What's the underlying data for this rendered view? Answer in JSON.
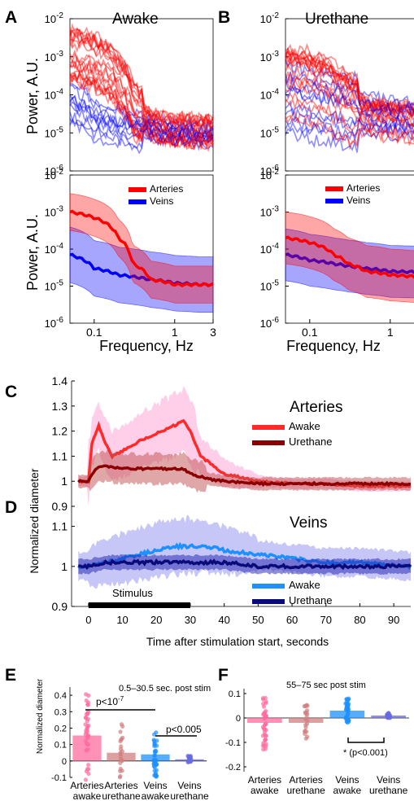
{
  "figure": {
    "panels": {
      "A": {
        "letter": "A",
        "title": "Awake"
      },
      "B": {
        "letter": "B",
        "title": "Urethane"
      },
      "C": {
        "letter": "C",
        "title": "Arteries"
      },
      "D": {
        "letter": "D",
        "title": "Veins"
      },
      "E": {
        "letter": "E",
        "annotation": "0.5–30.5 sec. post stim"
      },
      "F": {
        "letter": "F",
        "annotation": "55–75 sec post stim"
      }
    },
    "spectra": {
      "ylabel": "Power, A.U.",
      "xlabel": "Frequency, Hz",
      "xticks": [
        "0.1",
        "1",
        "3"
      ],
      "ytick_base": "10",
      "ytick_exponents": [
        "-2",
        "-3",
        "-4",
        "-5",
        "-6"
      ],
      "legend": [
        "Arteries",
        "Veins"
      ]
    },
    "timecourse": {
      "ylabel": "Normalized diameter",
      "xlabel": "Time after stimulation start, seconds",
      "stimulus_label": "Stimulus",
      "legend": [
        "Awake",
        "Urethane"
      ],
      "arteries_yticks": [
        "0.9",
        "1",
        "1.1",
        "1.2",
        "1.3",
        "1.4"
      ],
      "veins_yticks": [
        "0.9",
        "1",
        "1.1"
      ],
      "xticks": [
        "0",
        "10",
        "20",
        "30",
        "40",
        "50",
        "60",
        "70",
        "80",
        "90"
      ]
    },
    "bars": {
      "ylabel": "Normalized diameter",
      "categories": [
        "Arteries\nawake",
        "Arteries\nurethane",
        "Veins\nawake",
        "Veins\nurethane"
      ],
      "E_yticks": [
        "0.4",
        "0.3",
        "0.2",
        "0.1",
        "0",
        "-0.1"
      ],
      "F_yticks": [
        "0.1",
        "0",
        "-0.1",
        "-0.2"
      ],
      "E_sig": [
        "p<10",
        "-7",
        "p<0.005"
      ],
      "F_sig": "* (p<0.001)"
    }
  },
  "colors": {
    "artery_awake": "#ff2a2a",
    "artery_urethane": "#8b0000",
    "vein_awake": "#1e90ff",
    "vein_urethane": "#0a0a7a",
    "artery": "#ff0000",
    "vein": "#0000ff",
    "artery_band": "#ff9fd4",
    "vein_band": "#9090f0",
    "bar_art_awake": "#ff6b9e",
    "bar_art_ureth": "#d08080",
    "bar_vein_awake": "#8888ee",
    "bar_vein_ureth": "#8888ee"
  },
  "chart_data": [
    {
      "type": "line",
      "panel": "A",
      "title": "Awake",
      "xlabel": "Frequency, Hz",
      "ylabel": "Power, A.U.",
      "xscale": "log",
      "yscale": "log",
      "xlim": [
        0.05,
        3
      ],
      "ylim": [
        1e-06,
        0.01
      ],
      "series": [
        {
          "name": "Arteries",
          "x": [
            0.05,
            0.1,
            0.2,
            0.3,
            0.5,
            1,
            2,
            3
          ],
          "y": [
            0.001,
            0.0007,
            0.0002,
            4e-05,
            1.5e-05,
            1.1e-05,
            1.1e-05,
            1.1e-05
          ]
        },
        {
          "name": "Veins",
          "x": [
            0.05,
            0.1,
            0.2,
            0.3,
            0.5,
            1,
            2,
            3
          ],
          "y": [
            7e-05,
            3e-05,
            2e-05,
            1.8e-05,
            1.5e-05,
            1.2e-05,
            1.1e-05,
            1.1e-05
          ]
        }
      ]
    },
    {
      "type": "line",
      "panel": "B",
      "title": "Urethane",
      "xlabel": "Frequency, Hz",
      "ylabel": "Power, A.U.",
      "xscale": "log",
      "yscale": "log",
      "xlim": [
        0.05,
        3
      ],
      "ylim": [
        1e-06,
        0.01
      ],
      "series": [
        {
          "name": "Arteries",
          "x": [
            0.05,
            0.1,
            0.2,
            0.3,
            0.5,
            1,
            2,
            3
          ],
          "y": [
            0.0002,
            0.00015,
            7e-05,
            4e-05,
            2.5e-05,
            2e-05,
            1.8e-05,
            1.7e-05
          ]
        },
        {
          "name": "Veins",
          "x": [
            0.05,
            0.1,
            0.2,
            0.3,
            0.5,
            1,
            2,
            3
          ],
          "y": [
            7e-05,
            5e-05,
            4e-05,
            3.5e-05,
            3e-05,
            2.5e-05,
            2.4e-05,
            2.3e-05
          ]
        }
      ]
    },
    {
      "type": "line",
      "panel": "C",
      "title": "Arteries",
      "xlabel": "Time after stimulation start, seconds",
      "ylabel": "Normalized diameter",
      "xlim": [
        -5,
        95
      ],
      "ylim": [
        0.9,
        1.4
      ],
      "series": [
        {
          "name": "Awake",
          "x": [
            -3,
            0,
            1,
            3,
            5,
            7,
            10,
            15,
            20,
            25,
            28,
            30,
            33,
            40,
            50,
            60,
            70,
            80,
            95
          ],
          "y": [
            1.0,
            1.0,
            1.15,
            1.22,
            1.15,
            1.1,
            1.12,
            1.16,
            1.19,
            1.22,
            1.24,
            1.2,
            1.1,
            1.03,
            1.0,
            0.99,
            0.99,
            0.98,
            0.98
          ]
        },
        {
          "name": "Urethane",
          "x": [
            -3,
            0,
            2,
            5,
            10,
            15,
            20,
            25,
            28,
            30,
            35,
            40,
            50,
            60,
            70,
            80,
            95
          ],
          "y": [
            1.0,
            1.0,
            1.05,
            1.06,
            1.05,
            1.05,
            1.05,
            1.05,
            1.05,
            1.03,
            1.01,
            1.0,
            0.99,
            0.99,
            0.99,
            0.99,
            0.99
          ]
        }
      ]
    },
    {
      "type": "line",
      "panel": "D",
      "title": "Veins",
      "xlabel": "Time after stimulation start, seconds",
      "ylabel": "Normalized diameter",
      "xlim": [
        -5,
        95
      ],
      "ylim": [
        0.9,
        1.15
      ],
      "series": [
        {
          "name": "Awake",
          "x": [
            -3,
            0,
            5,
            10,
            15,
            20,
            25,
            30,
            35,
            40,
            50,
            60,
            70,
            80,
            95
          ],
          "y": [
            1.0,
            1.0,
            1.01,
            1.02,
            1.03,
            1.04,
            1.05,
            1.05,
            1.05,
            1.04,
            1.03,
            1.02,
            1.01,
            1.01,
            1.0
          ]
        },
        {
          "name": "Urethane",
          "x": [
            -3,
            0,
            5,
            10,
            20,
            30,
            40,
            50,
            60,
            70,
            80,
            95
          ],
          "y": [
            1.0,
            1.0,
            1.01,
            1.01,
            1.01,
            1.01,
            1.01,
            1.0,
            1.0,
            1.0,
            1.0,
            1.0
          ]
        }
      ],
      "annotations": [
        {
          "text": "Stimulus",
          "x_range": [
            0,
            30
          ]
        }
      ]
    },
    {
      "type": "bar",
      "panel": "E",
      "ylabel": "Normalized diameter",
      "title": "0.5–30.5 sec. post stim",
      "categories": [
        "Arteries awake",
        "Arteries urethane",
        "Veins awake",
        "Veins urethane"
      ],
      "values": [
        0.155,
        0.05,
        0.04,
        0.01
      ],
      "ylim": [
        -0.1,
        0.45
      ],
      "annotations": [
        "p<10^-7",
        "p<0.005"
      ]
    },
    {
      "type": "bar",
      "panel": "F",
      "title": "55–75 sec post stim",
      "categories": [
        "Arteries awake",
        "Arteries urethane",
        "Veins awake",
        "Veins urethane"
      ],
      "values": [
        -0.02,
        -0.02,
        0.03,
        0.01
      ],
      "ylim": [
        -0.22,
        0.12
      ],
      "annotations": [
        "* (p<0.001)"
      ]
    }
  ]
}
